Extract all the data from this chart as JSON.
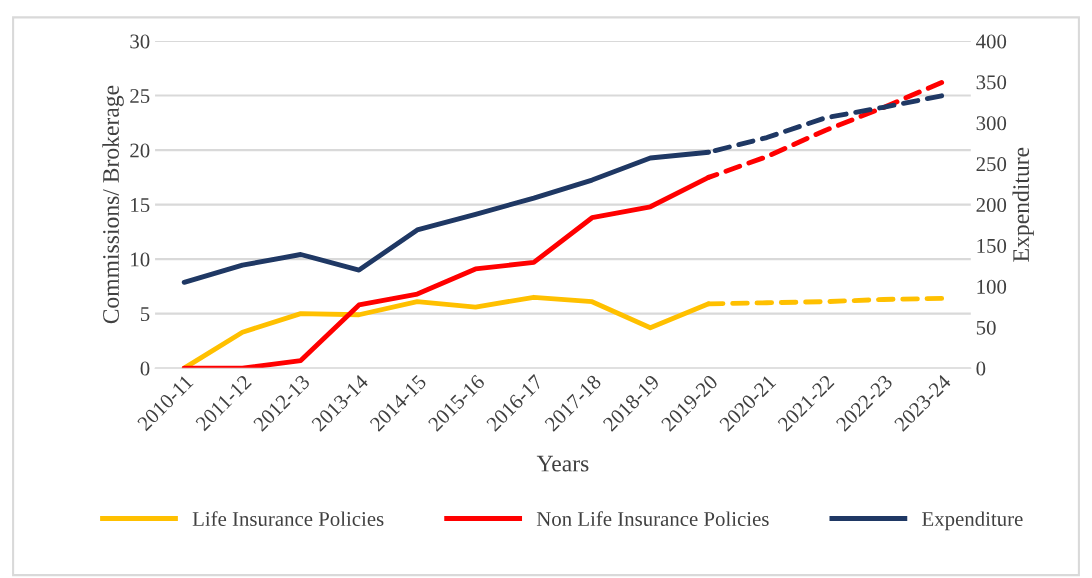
{
  "chart_data": {
    "type": "line",
    "xlabel": "Years",
    "ylabel": "Commissions/ Brokerage",
    "y2label": "Expenditure",
    "categories": [
      "2010-11",
      "2011-12",
      "2012-13",
      "2013-14",
      "2014-15",
      "2015-16",
      "2016-17",
      "2017-18",
      "2018-19",
      "2019-20",
      "2020-21",
      "2021-22",
      "2022-23",
      "2023-24"
    ],
    "series": [
      {
        "name": "Life Insurance Policies",
        "color": "#ffc000",
        "values": [
          0,
          3.3,
          5.0,
          4.9,
          6.1,
          5.6,
          6.5,
          6.1,
          3.7,
          5.9,
          null,
          null,
          null,
          null
        ]
      },
      {
        "name": "Non Life Insurance Policies",
        "color": "#ff0000",
        "values": [
          0,
          0,
          0.7,
          5.8,
          6.8,
          9.1,
          9.7,
          13.8,
          14.8,
          17.5,
          null,
          null,
          null,
          null
        ]
      },
      {
        "name": "Expenditure",
        "color": "#1f3864",
        "axis": "y2",
        "values": [
          105,
          126,
          139,
          120,
          169,
          188,
          208,
          230,
          257,
          264,
          null,
          null,
          null,
          null
        ]
      },
      {
        "color": "#ffc000",
        "line_style": "dashed",
        "values": [
          null,
          null,
          null,
          null,
          null,
          null,
          null,
          null,
          null,
          5.9,
          6.0,
          6.1,
          6.3,
          6.4
        ]
      },
      {
        "color": "#ff0000",
        "line_style": "dashed",
        "values": [
          null,
          null,
          null,
          null,
          null,
          null,
          null,
          null,
          null,
          17.5,
          19.4,
          21.8,
          23.9,
          26.2
        ]
      },
      {
        "color": "#1f3864",
        "line_style": "dashed",
        "axis": "y2",
        "values": [
          null,
          null,
          null,
          null,
          null,
          null,
          null,
          null,
          null,
          264,
          282,
          306,
          319,
          333
        ]
      }
    ],
    "ylim": [
      0,
      30
    ],
    "yticks": [
      0,
      5,
      10,
      15,
      20,
      25,
      30
    ],
    "y2lim": [
      0,
      400
    ],
    "y2ticks": [
      0,
      50,
      100,
      150,
      200,
      250,
      300,
      350,
      400
    ],
    "grid": "y",
    "legend": "bottom",
    "line_style": "solid",
    "marker": "none"
  }
}
